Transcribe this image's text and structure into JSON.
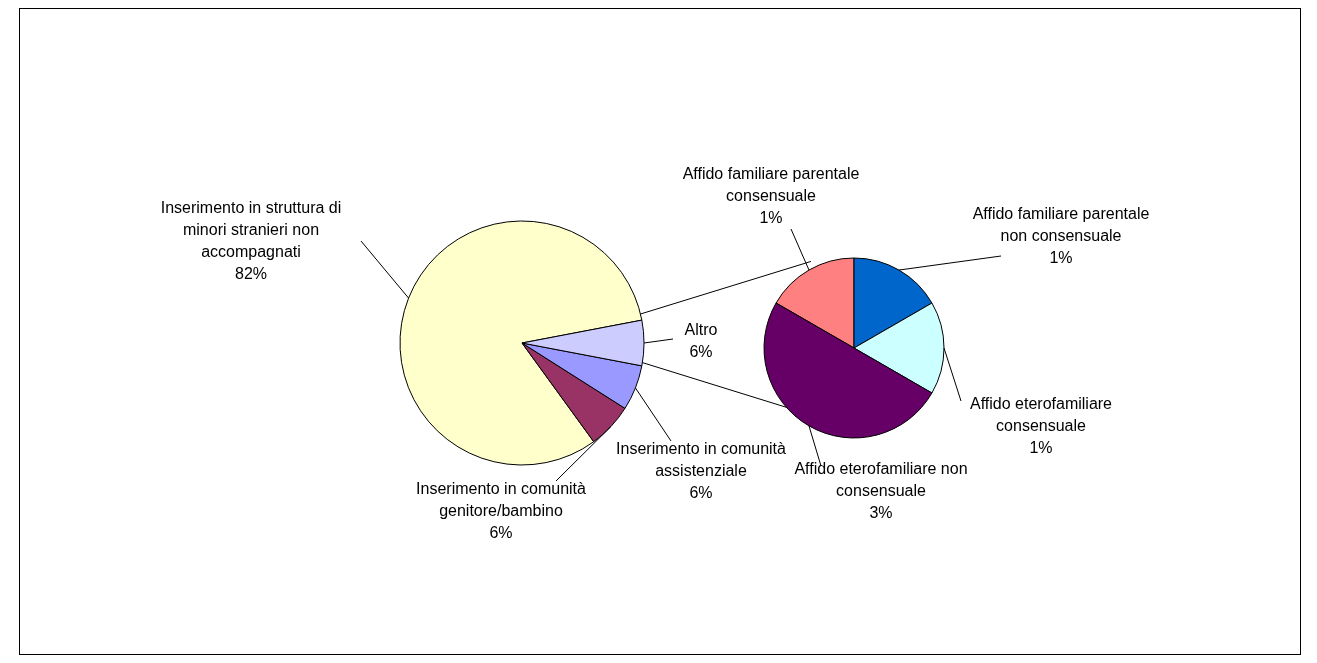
{
  "chart_data": [
    {
      "type": "pie",
      "categories": [
        "Inserimento in struttura di minori stranieri non accompagnati",
        "Inserimento in comunità genitore/bambino",
        "Inserimento in comunità assistenziale",
        "Altro"
      ],
      "values": [
        82,
        6,
        6,
        6
      ],
      "value_labels": [
        "82%",
        "6%",
        "6%",
        "6%"
      ],
      "colors": [
        "#ffffcc",
        "#993366",
        "#9999ff",
        "#ccccff"
      ],
      "legend": false
    },
    {
      "type": "pie",
      "categories": [
        "Affido familiare parentale consensuale",
        "Affido familiare parentale non consensuale",
        "Affido eterofamiliare consensuale",
        "Affido eterofamiliare non consensuale"
      ],
      "values": [
        1,
        1,
        1,
        3
      ],
      "value_labels": [
        "1%",
        "1%",
        "1%",
        "3%"
      ],
      "colors": [
        "#ff8080",
        "#0066cc",
        "#ccffff",
        "#660066"
      ],
      "legend": false
    }
  ]
}
